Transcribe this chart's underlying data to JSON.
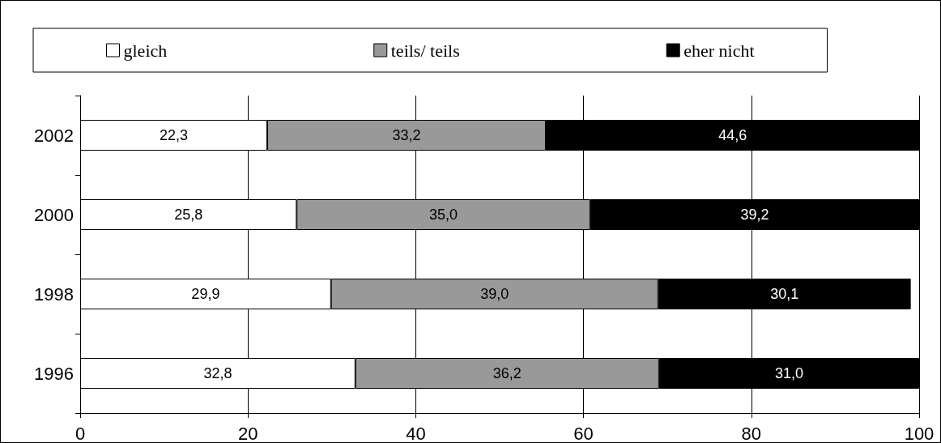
{
  "chart_data": {
    "type": "bar",
    "orientation": "horizontal",
    "stacked": true,
    "categories": [
      "2002",
      "2000",
      "1998",
      "1996"
    ],
    "series": [
      {
        "name": "gleich",
        "color": "#ffffff",
        "values": [
          22.3,
          25.8,
          29.9,
          32.8
        ],
        "value_labels": [
          "22,3",
          "25,8",
          "29,9",
          "32,8"
        ]
      },
      {
        "name": "teils/ teils",
        "color": "#999999",
        "values": [
          33.2,
          35.0,
          39.0,
          36.2
        ],
        "value_labels": [
          "33,2",
          "35,0",
          "39,0",
          "36,2"
        ]
      },
      {
        "name": "eher nicht",
        "color": "#000000",
        "values": [
          44.6,
          39.2,
          30.1,
          31.0
        ],
        "value_labels": [
          "44,6",
          "39,2",
          "30,1",
          "31,0"
        ]
      }
    ],
    "xlim": [
      0,
      100
    ],
    "xticks": [
      0,
      20,
      40,
      60,
      80,
      100
    ],
    "grid": "x",
    "legend": "top"
  }
}
